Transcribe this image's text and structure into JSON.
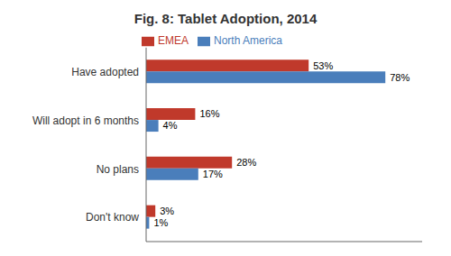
{
  "chart_data": {
    "type": "bar",
    "title": "Fig. 8: Tablet Adoption, 2014",
    "orientation": "horizontal",
    "categories": [
      "Have adopted",
      "Will adopt in 6 months",
      "No plans",
      "Don't know"
    ],
    "series": [
      {
        "name": "EMEA",
        "color": "#C0392B",
        "values": [
          53,
          16,
          28,
          3
        ],
        "value_labels": [
          "53%",
          "16%",
          "28%",
          "3%"
        ]
      },
      {
        "name": "North America",
        "color": "#4A7EBB",
        "values": [
          78,
          4,
          17,
          1
        ],
        "value_labels": [
          "78%",
          "4%",
          "17%",
          "1%"
        ]
      }
    ],
    "xlim": [
      0,
      90
    ],
    "data_labels": true,
    "tick_labels": "y",
    "legend": "top",
    "grid": false
  }
}
